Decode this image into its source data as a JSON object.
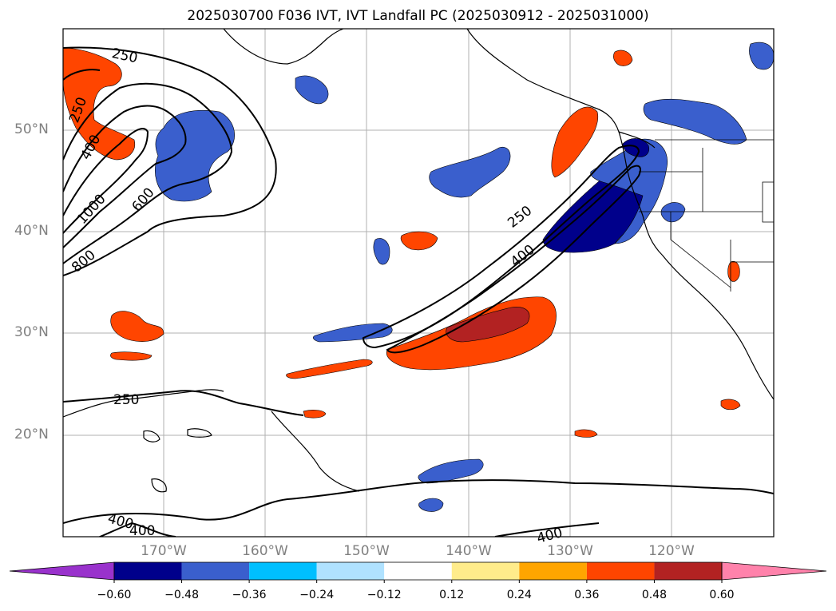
{
  "title": "2025030700 F036 IVT, IVT Landfall PC (2025030912 - 2025031000)",
  "lat_labels": [
    "50°N",
    "40°N",
    "30°N",
    "20°N"
  ],
  "lon_labels": [
    "170°W",
    "160°W",
    "150°W",
    "140°W",
    "130°W",
    "120°W"
  ],
  "contour_labels": [
    "250",
    "250",
    "400",
    "1000",
    "600",
    "800",
    "250",
    "400",
    "250",
    "400",
    "400",
    "400"
  ],
  "colorbar": {
    "ticks": [
      "−0.60",
      "−0.48",
      "−0.36",
      "−0.24",
      "−0.12",
      "0.12",
      "0.24",
      "0.36",
      "0.48",
      "0.60"
    ],
    "colors": [
      "#9932cc",
      "#00008b",
      "#3a5fcd",
      "#00bfff",
      "#b0e2ff",
      "#ffffff",
      "#ffec8b",
      "#ffa500",
      "#ff4500",
      "#b22222",
      "#ff82ab"
    ]
  }
}
